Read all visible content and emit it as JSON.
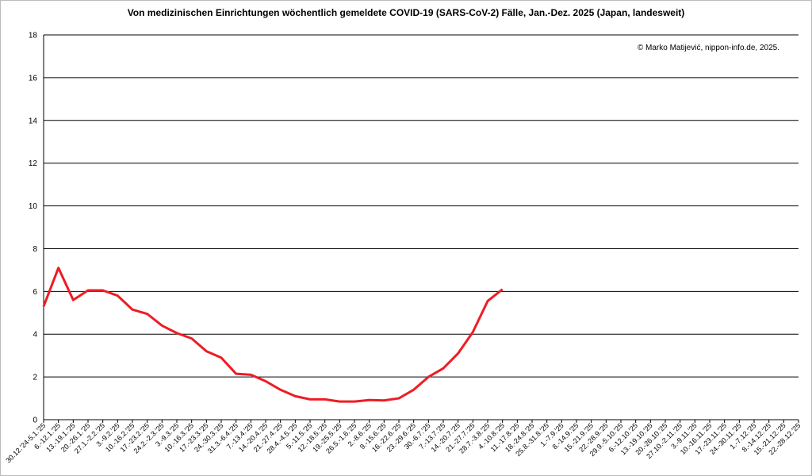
{
  "chart_data": {
    "type": "line",
    "title": "Von medizinischen Einrichtungen wöchentlich gemeldete COVID-19 (SARS-CoV-2) Fälle, Jan.-Dez. 2025 (Japan, landesweit)",
    "annotation": "© Marko Matijević, nippon-info.de, 2025.",
    "categories": [
      "30.12.'24-5.1.'25",
      "6.-12.1.'25",
      "13.-19.1.'25",
      "20.-26.1.'25",
      "27.1.-2.2.'25",
      "3.-9.2.'25",
      "10.-16.2.'25",
      "17.-23.2.'25",
      "24.2.-2.3.'25",
      "3.-9.3.'25",
      "10.-16.3.'25",
      "17.-23.3.'25",
      "24.-30.3.'25",
      "31.3.-6.4.'25",
      "7.-13.4.'25",
      "14.-20.4.'25",
      "21.-27.4.'25",
      "28.4.-4.5.'25",
      "5.-11.5.'25",
      "12.-18.5.'25",
      "19.-25.5.'25",
      "26.5.-1.6.'25",
      "2.-8.6.'25",
      "9.-15.6.'25",
      "16.-22.6.'25",
      "23.-29.6.'25",
      "30.-6.7.'25",
      "7.-13.7.'25",
      "14.-20.7.'25",
      "21.-27.7.'25",
      "28.7.-3.8.'25",
      "4.-10.8.'25",
      "11.-17.8.'25",
      "18.-24.8.'25",
      "25.8.-31.8.'25",
      "1.-7.9.'25",
      "8.-14.9.'25",
      "15.-21.9.'25",
      "22.-28.9.'25",
      "29.9.-5.10.'25",
      "6.-12.10.'25",
      "13.-19.10.'25",
      "20.-26.10.'25",
      "27.10.-2.11.'25",
      "3.-9.11.'25",
      "10.-16.11.'25",
      "17.-23.11.'25",
      "24.-30.11.'25",
      "1.-7.12.'25",
      "8.-14.12.'25",
      "15.-21.12.'25",
      "22.-28.12.'25"
    ],
    "series": [
      {
        "name": "COVID-19",
        "color": "#ee1c25",
        "values": [
          5.3,
          7.1,
          5.6,
          6.05,
          6.05,
          5.8,
          5.15,
          4.95,
          4.4,
          4.05,
          3.8,
          3.2,
          2.9,
          2.15,
          2.1,
          1.8,
          1.4,
          1.1,
          0.95,
          0.95,
          0.85,
          0.85,
          0.92,
          0.9,
          1.0,
          1.4,
          2.0,
          2.4,
          3.1,
          4.1,
          5.55,
          6.1,
          null,
          null,
          null,
          null,
          null,
          null,
          null,
          null,
          null,
          null,
          null,
          null,
          null,
          null,
          null,
          null,
          null,
          null,
          null,
          null
        ]
      }
    ],
    "ylim": [
      0,
      18
    ],
    "yticks": [
      0,
      2,
      4,
      6,
      8,
      10,
      12,
      14,
      16,
      18
    ],
    "grid": true
  }
}
